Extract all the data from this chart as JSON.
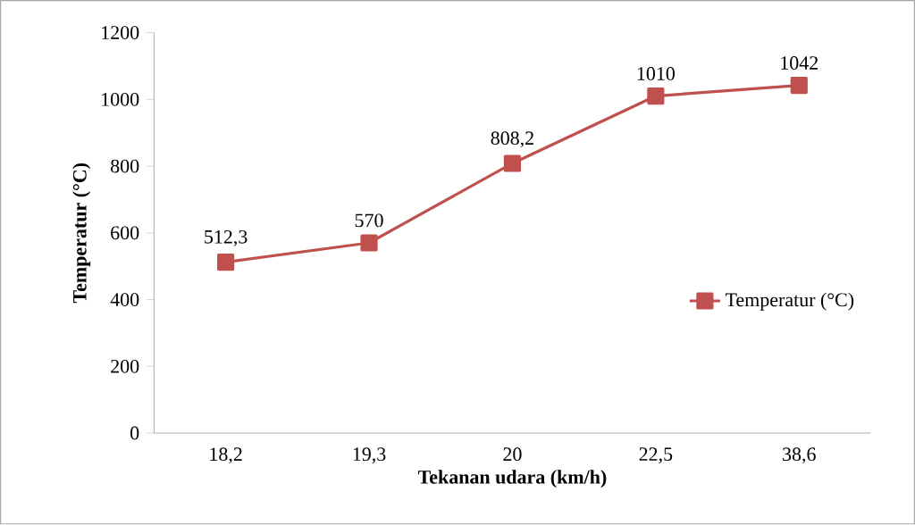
{
  "chart_data": {
    "type": "line",
    "xlabel": "Tekanan udara (km/h)",
    "ylabel": "Temperatur (°C)",
    "categories": [
      "18,2",
      "19,3",
      "20",
      "22,5",
      "38,6"
    ],
    "series": [
      {
        "name": "Temperatur (°C)",
        "color": "#c0504d",
        "values": [
          512.3,
          570,
          808.2,
          1010,
          1042
        ],
        "value_labels": [
          "512,3",
          "570",
          "808,2",
          "1010",
          "1042"
        ]
      }
    ],
    "ylim": [
      0,
      1200
    ],
    "yticks": [
      0,
      200,
      400,
      600,
      800,
      1000,
      1200
    ],
    "grid": false,
    "legend": "right",
    "marker": "square",
    "line_style": "solid"
  }
}
